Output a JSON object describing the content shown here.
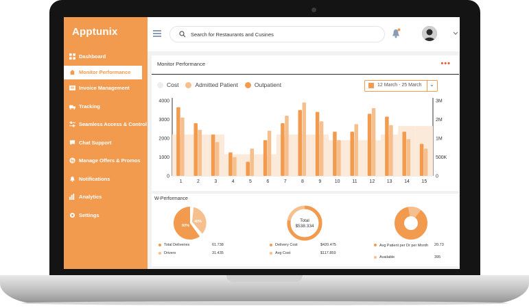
{
  "app": {
    "brand": "Apptunix"
  },
  "sidebar": {
    "items": [
      {
        "label": "Dashboard",
        "icon": "grid-icon"
      },
      {
        "label": "Monitor Performance",
        "icon": "home-icon",
        "active": true
      },
      {
        "label": "Invoice Management",
        "icon": "invoice-icon"
      },
      {
        "label": "Tracking",
        "icon": "tracking-icon"
      },
      {
        "label": "Seamless Access & Control",
        "icon": "sliders-icon"
      },
      {
        "label": "Chat Support",
        "icon": "chat-icon"
      },
      {
        "label": "Manage Offers & Promos",
        "icon": "offer-icon"
      },
      {
        "label": "Notifications",
        "icon": "bell-icon"
      },
      {
        "label": "Analytics",
        "icon": "bar-chart-icon"
      },
      {
        "label": "Settings",
        "icon": "gear-icon"
      }
    ]
  },
  "topbar": {
    "search_placeholder": "Search for Restaurants and Cusines"
  },
  "monitor": {
    "title": "Monitor Performance",
    "more": "•••",
    "legend": [
      {
        "label": "Cost",
        "color": "#eeeeee"
      },
      {
        "label": "Admitted Patient",
        "color": "#f5bf8e"
      },
      {
        "label": "Outpatient",
        "color": "#f29b4f"
      }
    ],
    "date_range": "12 March - 25 March"
  },
  "chart_data": {
    "type": "bar",
    "categories": [
      "1",
      "2",
      "3",
      "4",
      "5",
      "6",
      "7",
      "8",
      "9",
      "10",
      "11",
      "12",
      "13",
      "14",
      "15"
    ],
    "ylim": [
      0,
      4000
    ],
    "yticks": [
      "0",
      "1000",
      "2000",
      "3000",
      "4000"
    ],
    "y2ticks": [
      "0",
      "500K",
      "1M",
      "2M",
      "3M"
    ],
    "series": [
      {
        "name": "Outpatient",
        "values": [
          3650,
          2800,
          2200,
          1250,
          750,
          1900,
          2800,
          3500,
          3400,
          2350,
          2350,
          3300,
          3150,
          2350,
          1700
        ]
      },
      {
        "name": "Admitted Patient",
        "values": [
          3100,
          2450,
          1800,
          1000,
          1450,
          2400,
          3200,
          3900,
          2900,
          1900,
          2750,
          3600,
          2700,
          1950,
          1450
        ]
      },
      {
        "name": "Cost",
        "values": [
          2200,
          2200,
          2200,
          1150,
          1150,
          1150,
          2200,
          2200,
          2200,
          1900,
          1900,
          1900,
          2200,
          2650,
          2650
        ]
      }
    ]
  },
  "wperf": {
    "title": "W-Performance",
    "d1": {
      "left_pct": "60%",
      "right_pct": "40%",
      "stats": [
        {
          "label": "Total Deliveries",
          "value": "61.738"
        },
        {
          "label": "Drivers",
          "value": "31.435"
        }
      ]
    },
    "d2": {
      "center_label": "Total",
      "center_value": "$538.334",
      "stats": [
        {
          "label": "Delivery Cost",
          "value": "$420.475"
        },
        {
          "label": "Avg Cost",
          "value": "$117.859"
        }
      ]
    },
    "d3": {
      "stats": [
        {
          "label": "Avg Patient per Dr per Month",
          "value": "20.73"
        },
        {
          "label": "Available",
          "value": "395"
        }
      ]
    }
  }
}
